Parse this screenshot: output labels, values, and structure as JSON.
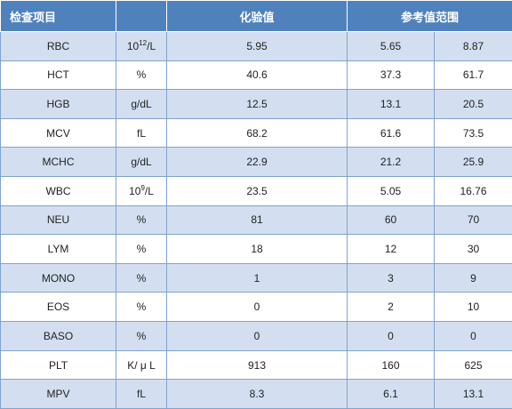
{
  "headers": {
    "item": "检查项目",
    "result": "化验值",
    "reference": "参考值范围"
  },
  "rows": [
    {
      "name": "RBC",
      "unit_base": "10",
      "unit_exp": "12",
      "unit_tail": "/L",
      "value": "5.95",
      "ref_low": "5.65",
      "ref_high": "8.87"
    },
    {
      "name": "HCT",
      "unit_base": "%",
      "unit_exp": "",
      "unit_tail": "",
      "value": "40.6",
      "ref_low": "37.3",
      "ref_high": "61.7"
    },
    {
      "name": "HGB",
      "unit_base": "g/dL",
      "unit_exp": "",
      "unit_tail": "",
      "value": "12.5",
      "ref_low": "13.1",
      "ref_high": "20.5"
    },
    {
      "name": "MCV",
      "unit_base": "fL",
      "unit_exp": "",
      "unit_tail": "",
      "value": "68.2",
      "ref_low": "61.6",
      "ref_high": "73.5"
    },
    {
      "name": "MCHC",
      "unit_base": "g/dL",
      "unit_exp": "",
      "unit_tail": "",
      "value": "22.9",
      "ref_low": "21.2",
      "ref_high": "25.9"
    },
    {
      "name": "WBC",
      "unit_base": "10",
      "unit_exp": "9",
      "unit_tail": "/L",
      "value": "23.5",
      "ref_low": "5.05",
      "ref_high": "16.76"
    },
    {
      "name": "NEU",
      "unit_base": "%",
      "unit_exp": "",
      "unit_tail": "",
      "value": "81",
      "ref_low": "60",
      "ref_high": "70"
    },
    {
      "name": "LYM",
      "unit_base": "%",
      "unit_exp": "",
      "unit_tail": "",
      "value": "18",
      "ref_low": "12",
      "ref_high": "30"
    },
    {
      "name": "MONO",
      "unit_base": "%",
      "unit_exp": "",
      "unit_tail": "",
      "value": "1",
      "ref_low": "3",
      "ref_high": "9"
    },
    {
      "name": "EOS",
      "unit_base": "%",
      "unit_exp": "",
      "unit_tail": "",
      "value": "0",
      "ref_low": "2",
      "ref_high": "10"
    },
    {
      "name": "BASO",
      "unit_base": "%",
      "unit_exp": "",
      "unit_tail": "",
      "value": "0",
      "ref_low": "0",
      "ref_high": "0"
    },
    {
      "name": "PLT",
      "unit_base": "K/ μ L",
      "unit_exp": "",
      "unit_tail": "",
      "value": "913",
      "ref_low": "160",
      "ref_high": "625"
    },
    {
      "name": "MPV",
      "unit_base": "fL",
      "unit_exp": "",
      "unit_tail": "",
      "value": "8.3",
      "ref_low": "6.1",
      "ref_high": "13.1"
    }
  ]
}
